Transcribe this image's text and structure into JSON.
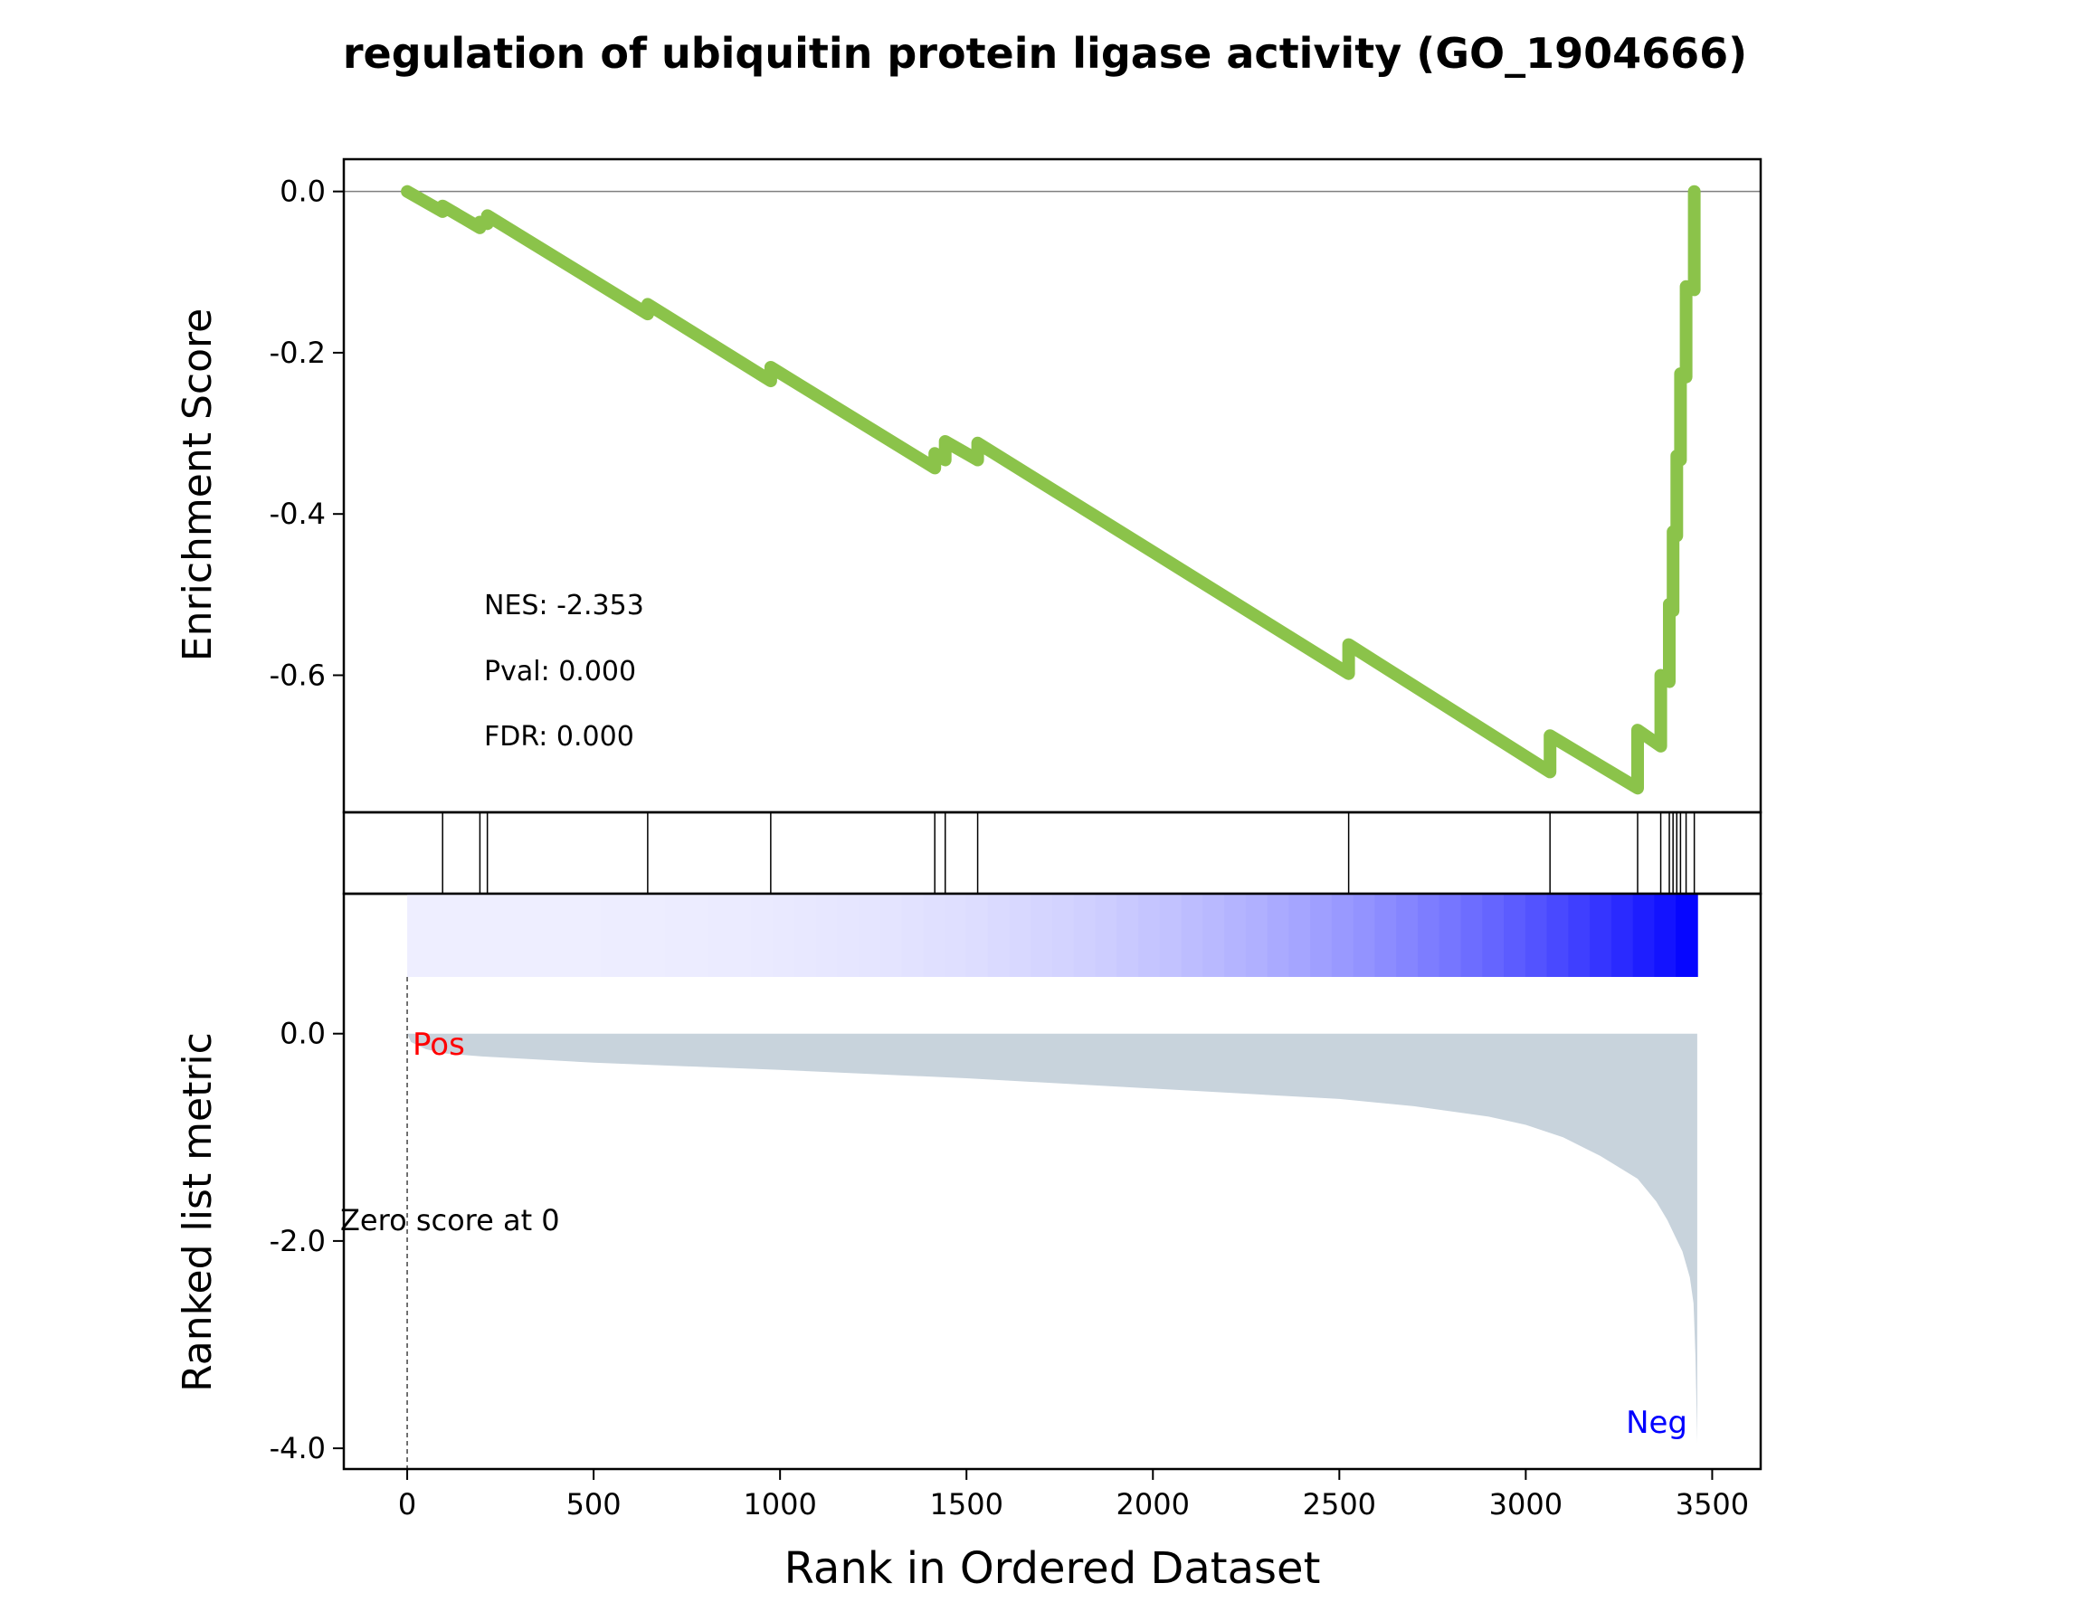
{
  "chart_data": {
    "type": "line",
    "title": "regulation of ubiquitin protein ligase activity (GO_1904666)",
    "xlabel": "Rank in Ordered Dataset",
    "xlim": [
      -170,
      3630
    ],
    "x_ticks": [
      "0",
      "500",
      "1000",
      "1500",
      "2000",
      "2500",
      "3000",
      "3500"
    ],
    "x_tick_values": [
      0,
      500,
      1000,
      1500,
      2000,
      2500,
      3000,
      3500
    ],
    "n_genes": 3460,
    "enrichment": {
      "ylabel": "Enrichment Score",
      "ylim": [
        -0.77,
        0.04
      ],
      "y_ticks": [
        "0.0",
        "-0.2",
        "-0.4",
        "-0.6"
      ],
      "y_tick_values": [
        0.0,
        -0.2,
        -0.4,
        -0.6
      ],
      "line_color": "#8bc34a",
      "points": [
        [
          0,
          0.0
        ],
        [
          95,
          -0.025
        ],
        [
          95,
          -0.018
        ],
        [
          195,
          -0.045
        ],
        [
          195,
          -0.038
        ],
        [
          215,
          -0.04
        ],
        [
          215,
          -0.03
        ],
        [
          645,
          -0.152
        ],
        [
          645,
          -0.14
        ],
        [
          975,
          -0.235
        ],
        [
          975,
          -0.218
        ],
        [
          1415,
          -0.343
        ],
        [
          1415,
          -0.325
        ],
        [
          1443,
          -0.333
        ],
        [
          1443,
          -0.31
        ],
        [
          1530,
          -0.333
        ],
        [
          1530,
          -0.312
        ],
        [
          2525,
          -0.598
        ],
        [
          2525,
          -0.562
        ],
        [
          3065,
          -0.72
        ],
        [
          3065,
          -0.675
        ],
        [
          3300,
          -0.74
        ],
        [
          3300,
          -0.668
        ],
        [
          3362,
          -0.688
        ],
        [
          3362,
          -0.6
        ],
        [
          3385,
          -0.608
        ],
        [
          3385,
          -0.512
        ],
        [
          3395,
          -0.52
        ],
        [
          3395,
          -0.422
        ],
        [
          3405,
          -0.427
        ],
        [
          3405,
          -0.328
        ],
        [
          3415,
          -0.333
        ],
        [
          3415,
          -0.226
        ],
        [
          3430,
          -0.23
        ],
        [
          3430,
          -0.118
        ],
        [
          3452,
          -0.122
        ],
        [
          3452,
          0.0
        ]
      ],
      "stats": [
        "NES: -2.353",
        "Pval: 0.000",
        "FDR: 0.000"
      ]
    },
    "hits": [
      95,
      195,
      215,
      645,
      975,
      1415,
      1443,
      1530,
      2525,
      3065,
      3300,
      3362,
      3385,
      3395,
      3405,
      3415,
      3430,
      3452
    ],
    "ranked_metric": {
      "ylabel": "Ranked list metric",
      "ylim": [
        -4.2,
        1.35
      ],
      "y_ticks": [
        "0.0",
        "-2.0",
        "-4.0"
      ],
      "y_tick_values": [
        0.0,
        -2.0,
        -4.0
      ],
      "fill_color": "#c8d3dc",
      "curve": [
        [
          0,
          0.0
        ],
        [
          10,
          -0.08
        ],
        [
          50,
          -0.15
        ],
        [
          100,
          -0.19
        ],
        [
          200,
          -0.22
        ],
        [
          500,
          -0.28
        ],
        [
          1000,
          -0.35
        ],
        [
          1500,
          -0.43
        ],
        [
          2000,
          -0.53
        ],
        [
          2500,
          -0.63
        ],
        [
          2700,
          -0.7
        ],
        [
          2900,
          -0.8
        ],
        [
          3000,
          -0.88
        ],
        [
          3100,
          -1.0
        ],
        [
          3200,
          -1.18
        ],
        [
          3300,
          -1.4
        ],
        [
          3350,
          -1.62
        ],
        [
          3380,
          -1.8
        ],
        [
          3400,
          -1.95
        ],
        [
          3420,
          -2.1
        ],
        [
          3440,
          -2.35
        ],
        [
          3450,
          -2.6
        ],
        [
          3455,
          -3.1
        ],
        [
          3458,
          -3.6
        ],
        [
          3460,
          -3.95
        ],
        [
          3460,
          0.0
        ]
      ],
      "annotations": {
        "pos": "Pos",
        "neg": "Neg",
        "zero": "Zero score at 0",
        "zero_at": 0,
        "pos_color": "#ff0000",
        "neg_color": "#0000ff"
      }
    }
  }
}
